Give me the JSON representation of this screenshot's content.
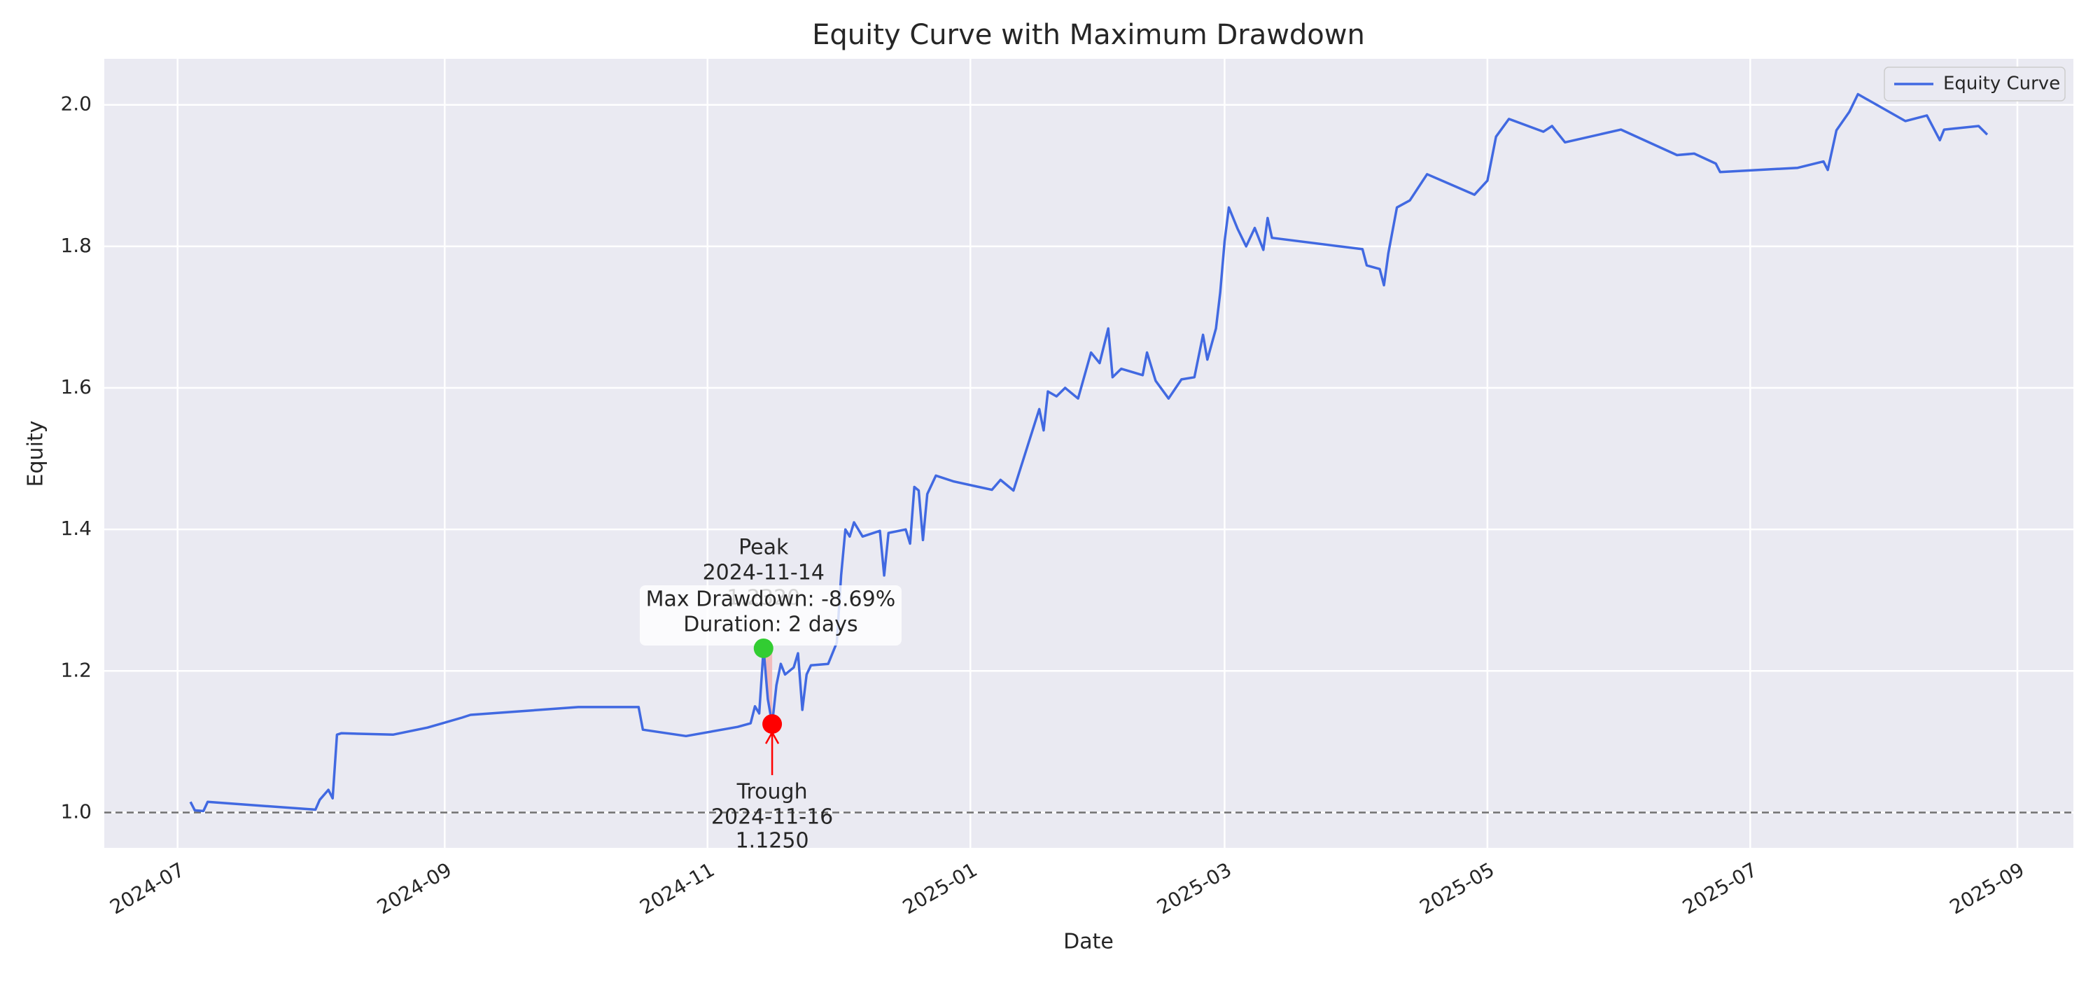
{
  "chart_data": {
    "type": "line",
    "title": "Equity Curve with Maximum Drawdown",
    "x_label": "Date",
    "y_label": "Equity",
    "x": [
      "2024-07-04",
      "2024-07-05",
      "2024-07-07",
      "2024-07-08",
      "2024-08-02",
      "2024-08-03",
      "2024-08-05",
      "2024-08-06",
      "2024-08-07",
      "2024-08-08",
      "2024-08-20",
      "2024-08-28",
      "2024-09-05",
      "2024-09-07",
      "2024-10-02",
      "2024-10-16",
      "2024-10-17",
      "2024-10-27",
      "2024-11-08",
      "2024-11-11",
      "2024-11-12",
      "2024-11-13",
      "2024-11-14",
      "2024-11-15",
      "2024-11-16",
      "2024-11-17",
      "2024-11-18",
      "2024-11-19",
      "2024-11-21",
      "2024-11-22",
      "2024-11-23",
      "2024-11-24",
      "2024-11-25",
      "2024-11-29",
      "2024-12-01",
      "2024-12-02",
      "2024-12-03",
      "2024-12-04",
      "2024-12-05",
      "2024-12-07",
      "2024-12-11",
      "2024-12-12",
      "2024-12-13",
      "2024-12-17",
      "2024-12-18",
      "2024-12-19",
      "2024-12-20",
      "2024-12-21",
      "2024-12-22",
      "2024-12-24",
      "2024-12-28",
      "2025-01-06",
      "2025-01-08",
      "2025-01-11",
      "2025-01-17",
      "2025-01-18",
      "2025-01-19",
      "2025-01-21",
      "2025-01-23",
      "2025-01-26",
      "2025-01-29",
      "2025-01-31",
      "2025-02-02",
      "2025-02-03",
      "2025-02-05",
      "2025-02-10",
      "2025-02-11",
      "2025-02-13",
      "2025-02-16",
      "2025-02-19",
      "2025-02-22",
      "2025-02-24",
      "2025-02-25",
      "2025-02-27",
      "2025-02-28",
      "2025-03-01",
      "2025-03-02",
      "2025-03-04",
      "2025-03-06",
      "2025-03-08",
      "2025-03-10",
      "2025-03-11",
      "2025-03-12",
      "2025-04-02",
      "2025-04-03",
      "2025-04-06",
      "2025-04-07",
      "2025-04-08",
      "2025-04-10",
      "2025-04-13",
      "2025-04-17",
      "2025-04-28",
      "2025-05-01",
      "2025-05-03",
      "2025-05-06",
      "2025-05-14",
      "2025-05-16",
      "2025-05-19",
      "2025-06-01",
      "2025-06-14",
      "2025-06-18",
      "2025-06-23",
      "2025-06-24",
      "2025-07-12",
      "2025-07-18",
      "2025-07-19",
      "2025-07-21",
      "2025-07-24",
      "2025-07-26",
      "2025-08-06",
      "2025-08-11",
      "2025-08-14",
      "2025-08-15",
      "2025-08-23",
      "2025-08-25"
    ],
    "series": [
      {
        "name": "Equity Curve",
        "color": "#4169e1",
        "values": [
          1.015,
          1.003,
          1.002,
          1.015,
          1.004,
          1.018,
          1.032,
          1.02,
          1.11,
          1.112,
          1.11,
          1.12,
          1.134,
          1.138,
          1.149,
          1.149,
          1.117,
          1.108,
          1.121,
          1.126,
          1.15,
          1.14,
          1.232,
          1.16,
          1.125,
          1.18,
          1.21,
          1.195,
          1.205,
          1.225,
          1.145,
          1.195,
          1.208,
          1.21,
          1.24,
          1.335,
          1.4,
          1.39,
          1.41,
          1.39,
          1.398,
          1.335,
          1.395,
          1.4,
          1.38,
          1.46,
          1.455,
          1.385,
          1.45,
          1.476,
          1.468,
          1.456,
          1.47,
          1.455,
          1.57,
          1.54,
          1.595,
          1.588,
          1.6,
          1.585,
          1.65,
          1.635,
          1.684,
          1.615,
          1.627,
          1.618,
          1.65,
          1.61,
          1.585,
          1.612,
          1.615,
          1.675,
          1.64,
          1.684,
          1.735,
          1.807,
          1.855,
          1.825,
          1.8,
          1.826,
          1.795,
          1.84,
          1.812,
          1.796,
          1.773,
          1.768,
          1.745,
          1.79,
          1.855,
          1.865,
          1.902,
          1.873,
          1.893,
          1.955,
          1.98,
          1.962,
          1.97,
          1.947,
          1.965,
          1.929,
          1.931,
          1.917,
          1.905,
          1.911,
          1.92,
          1.908,
          1.964,
          1.99,
          2.015,
          1.977,
          1.985,
          1.95,
          1.965,
          1.97,
          1.958
        ]
      }
    ],
    "xlim": [
      "2024-06-14",
      "2025-09-14"
    ],
    "xticks": [
      "2024-07",
      "2024-09",
      "2024-11",
      "2025-01",
      "2025-03",
      "2025-05",
      "2025-07",
      "2025-09"
    ],
    "ylim": [
      0.95,
      2.065
    ],
    "yticks": [
      {
        "value": 1,
        "label": "1.0"
      },
      {
        "value": 1.2,
        "label": "1.2"
      },
      {
        "value": 1.4,
        "label": "1.4"
      },
      {
        "value": 1.6,
        "label": "1.6"
      },
      {
        "value": 1.8,
        "label": "1.8"
      },
      {
        "value": 2,
        "label": "2.0"
      }
    ],
    "grid": true,
    "legend": "upper right",
    "hline": 1,
    "peak": {
      "label": "Peak",
      "date": "2024-11-14",
      "value": 1.232,
      "value_label": "1.2320",
      "color": "#32cd32"
    },
    "trough": {
      "label": "Trough",
      "date": "2024-11-16",
      "value": 1.125,
      "value_label": "1.1250",
      "color": "#ff0000"
    },
    "drawdown_color": "#f4a6a6",
    "drawdown_box": [
      "Max Drawdown: -8.69%",
      "Duration: 2 days"
    ]
  }
}
